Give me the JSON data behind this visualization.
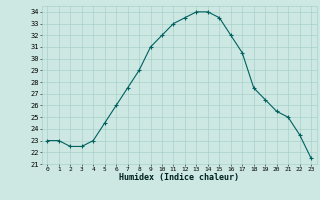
{
  "x": [
    0,
    1,
    2,
    3,
    4,
    5,
    6,
    7,
    8,
    9,
    10,
    11,
    12,
    13,
    14,
    15,
    16,
    17,
    18,
    19,
    20,
    21,
    22,
    23
  ],
  "y": [
    23,
    23,
    22.5,
    22.5,
    23,
    24.5,
    26,
    27.5,
    29,
    31,
    32,
    33,
    33.5,
    34,
    34,
    33.5,
    32,
    30.5,
    27.5,
    26.5,
    25.5,
    25,
    23.5,
    21.5
  ],
  "line_color": "#006060",
  "bg_color": "#cde8e2",
  "grid_color": "#9fccc4",
  "xlabel": "Humidex (Indice chaleur)",
  "ylim": [
    21,
    34.5
  ],
  "xlim": [
    -0.5,
    23.5
  ],
  "yticks": [
    21,
    22,
    23,
    24,
    25,
    26,
    27,
    28,
    29,
    30,
    31,
    32,
    33,
    34
  ],
  "xticks": [
    0,
    1,
    2,
    3,
    4,
    5,
    6,
    7,
    8,
    9,
    10,
    11,
    12,
    13,
    14,
    15,
    16,
    17,
    18,
    19,
    20,
    21,
    22,
    23
  ]
}
